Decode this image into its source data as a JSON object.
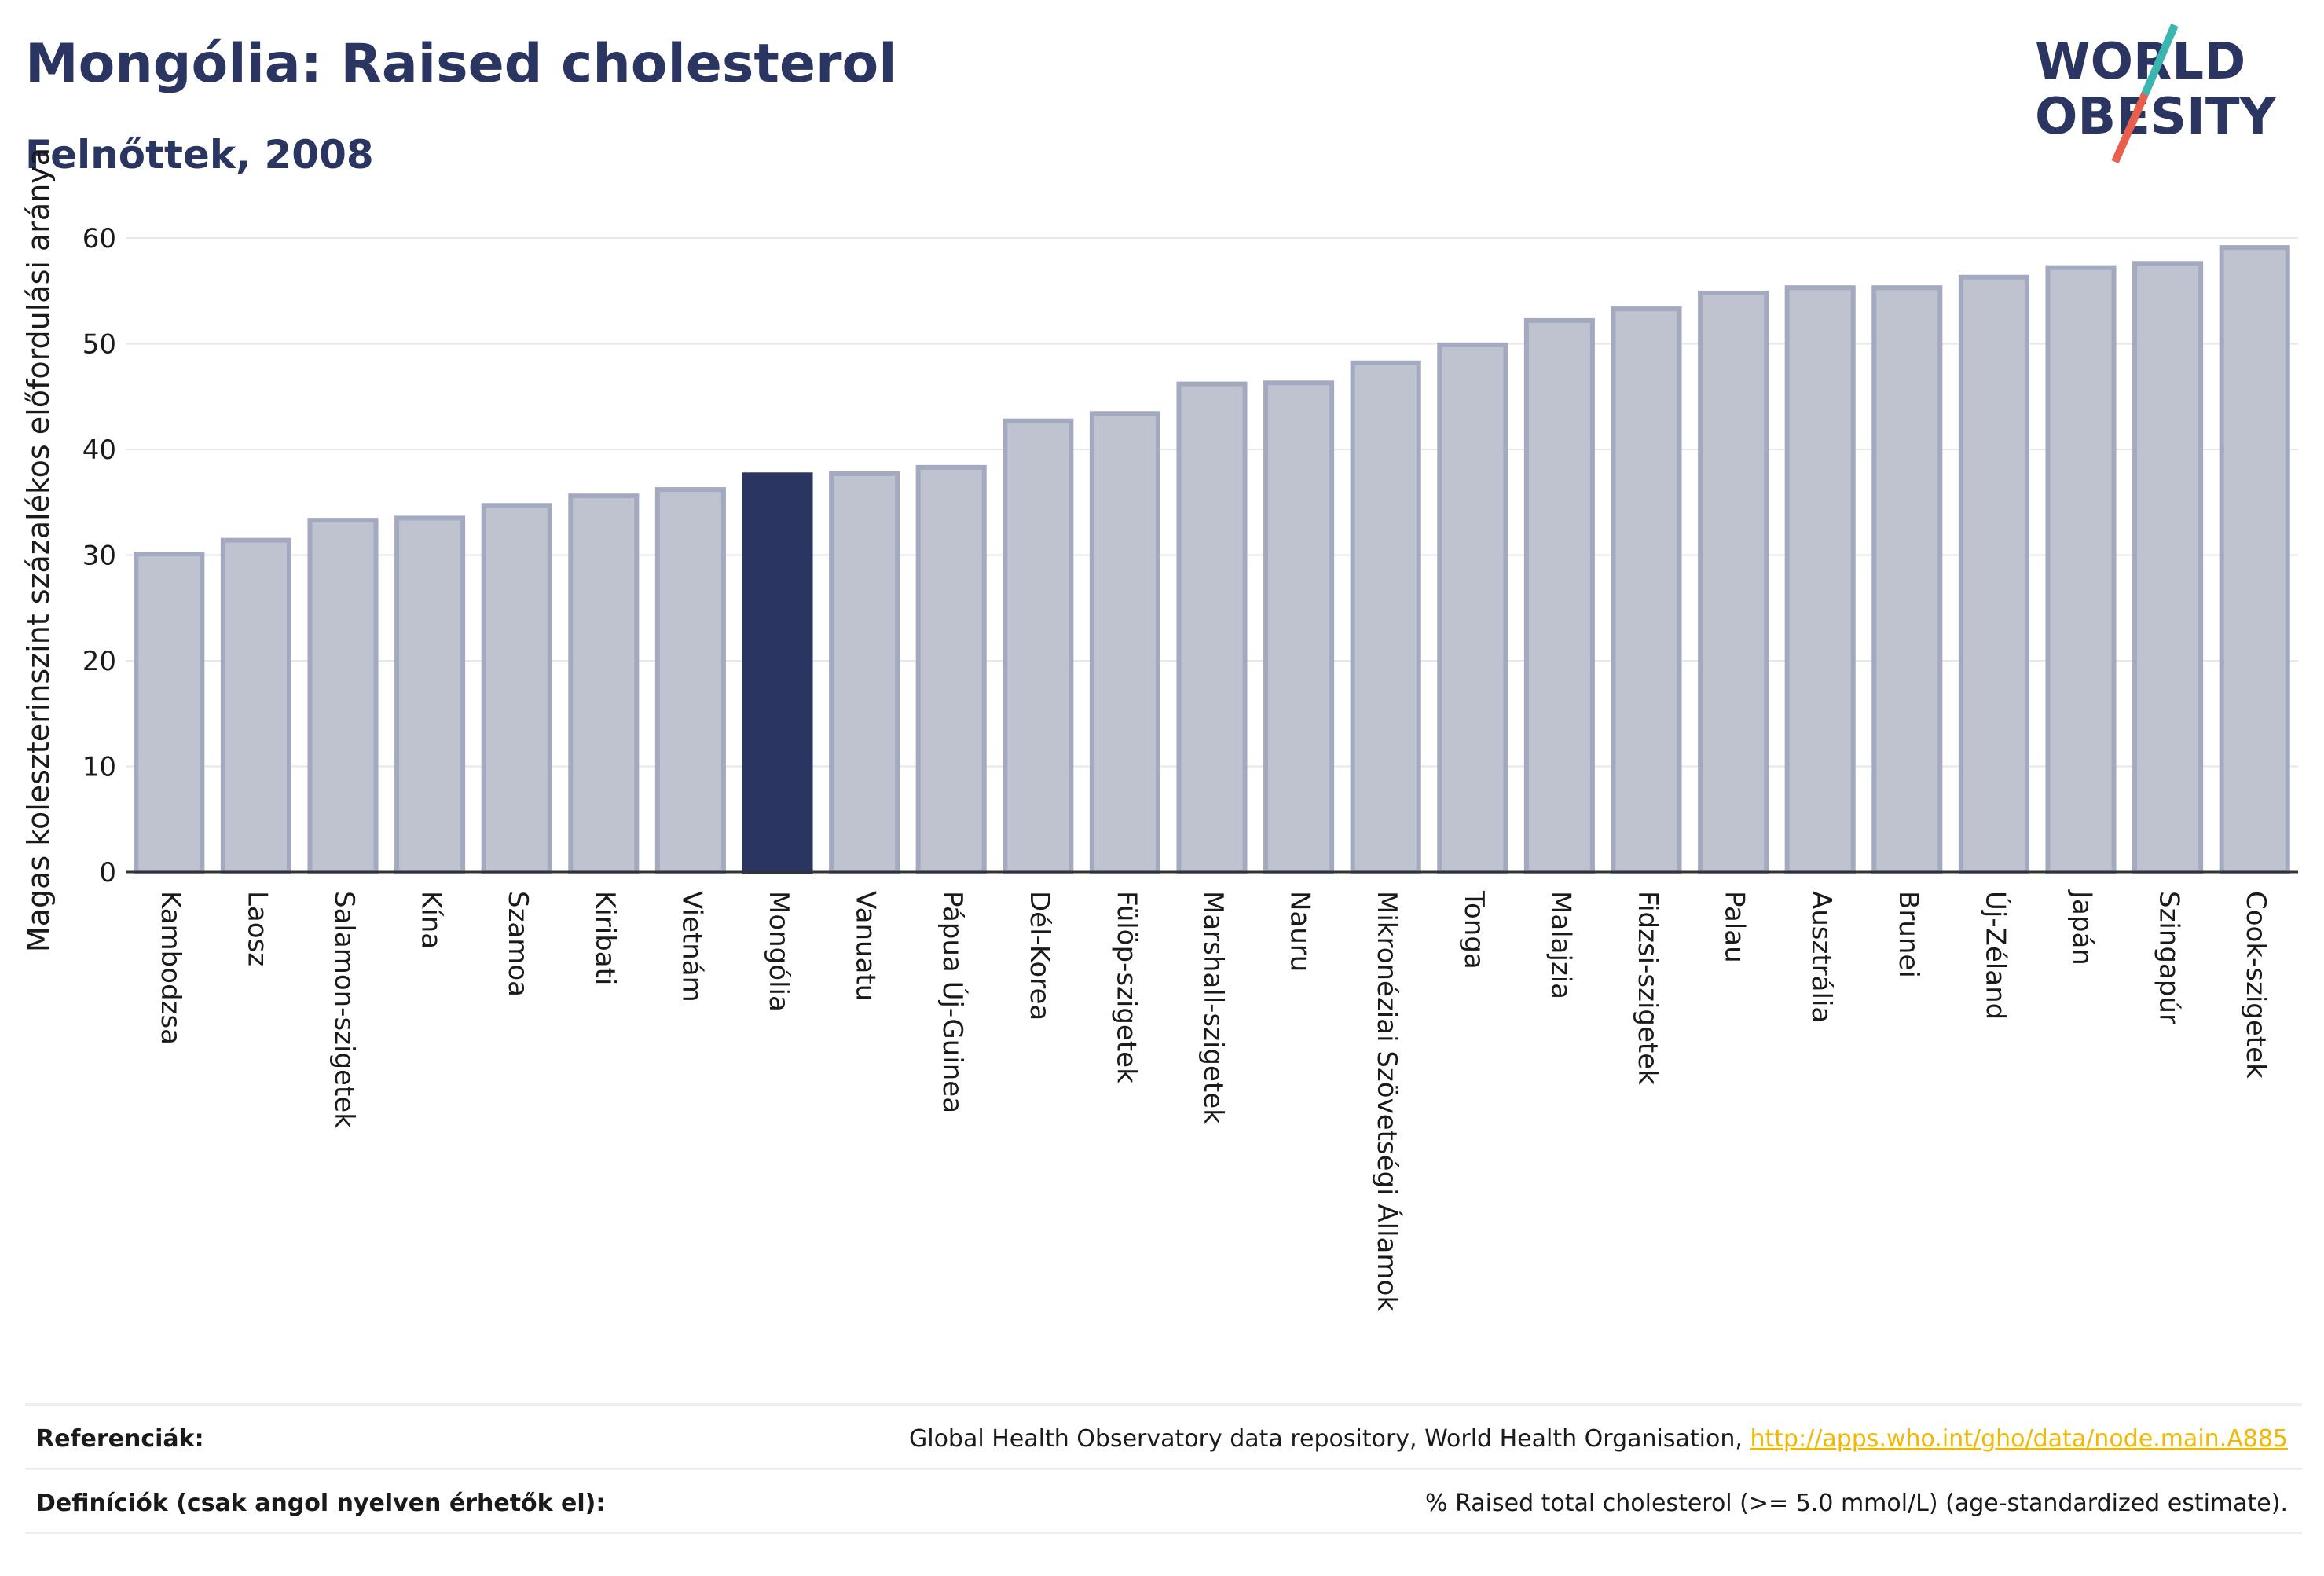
{
  "header": {
    "title": "Mongólia: Raised cholesterol",
    "subtitle": "Felnőttek, 2008"
  },
  "logo": {
    "line1": "WORLD",
    "line2": "OBESITY",
    "slash_color_top": "#3ab5b0",
    "slash_color_bottom": "#e8604c",
    "text_color": "#2b3561"
  },
  "colors": {
    "bar_default": "#bfc3d0",
    "bar_border": "#a3a9bf",
    "bar_highlight": "#2b3561",
    "grid": "#e6e6ee",
    "axis": "#333333"
  },
  "chart_data": {
    "type": "bar",
    "ylabel": "Magas koleszterinszint százalékos előfordulási aránya",
    "xlabel": "",
    "ylim": [
      0,
      60
    ],
    "yticks": [
      0,
      10,
      20,
      30,
      40,
      50,
      60
    ],
    "grid": true,
    "highlight": "Mongólia",
    "categories": [
      "Kambodzsa",
      "Laosz",
      "Salamon-szigetek",
      "Kína",
      "Szamoa",
      "Kiribati",
      "Vietnám",
      "Mongólia",
      "Vanuatu",
      "Pápua Új-Guinea",
      "Dél-Korea",
      "Fülöp-szigetek",
      "Marshall-szigetek",
      "Nauru",
      "Mikronéziai Szövetségi Államok",
      "Tonga",
      "Malajzia",
      "Fidzsi-szigetek",
      "Palau",
      "Ausztrália",
      "Brunei",
      "Új-Zéland",
      "Japán",
      "Szingapúr",
      "Cook-szigetek"
    ],
    "values": [
      30.1,
      31.4,
      33.3,
      33.5,
      34.7,
      35.6,
      36.2,
      37.6,
      37.7,
      38.3,
      42.7,
      43.4,
      46.2,
      46.3,
      48.2,
      49.9,
      52.2,
      53.3,
      54.8,
      55.3,
      55.3,
      56.3,
      57.2,
      57.6,
      59.1
    ]
  },
  "footer": {
    "references_label": "Referenciák:",
    "references_text": "Global Health Observatory data repository, World Health Organisation,",
    "references_link": "http://apps.who.int/gho/data/node.main.A885",
    "definitions_label": "Definíciók (csak angol nyelven érhetők el):",
    "definitions_text": "% Raised total cholesterol (>= 5.0 mmol/L) (age-standardized estimate)."
  }
}
